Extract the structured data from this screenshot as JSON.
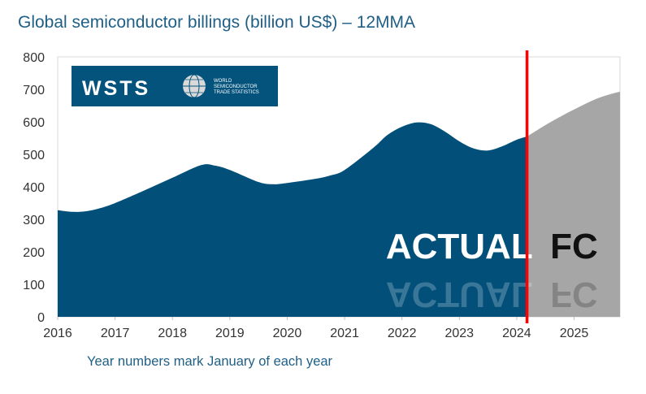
{
  "chart_data": {
    "type": "area",
    "title": "Global semiconductor billings (billion US$) – 12MMA",
    "xlabel": "Year numbers mark January of each year",
    "ylabel": "",
    "xlim": [
      2016.0,
      2025.8
    ],
    "ylim": [
      0,
      800
    ],
    "y_ticks": [
      0,
      100,
      200,
      300,
      400,
      500,
      600,
      700,
      800
    ],
    "x_ticks": [
      2016,
      2017,
      2018,
      2019,
      2020,
      2021,
      2022,
      2023,
      2024,
      2025
    ],
    "grid": false,
    "forecast_start": 2024.18,
    "colors": {
      "actual": "#02507a",
      "forecast": "#a6a6a6",
      "divider": "#ff0000",
      "title": "#1f5f86"
    },
    "series": [
      {
        "segment": "actual",
        "x": [
          2016.0,
          2016.25,
          2016.5,
          2016.75,
          2017.0,
          2017.5,
          2018.0,
          2018.5,
          2018.75,
          2019.0,
          2019.5,
          2019.75,
          2020.0,
          2020.5,
          2020.75,
          2021.0,
          2021.5,
          2021.75,
          2022.0,
          2022.25,
          2022.5,
          2022.75,
          2023.0,
          2023.25,
          2023.5,
          2023.75,
          2024.0,
          2024.18
        ],
        "y": [
          328,
          323,
          325,
          335,
          350,
          388,
          428,
          467,
          465,
          452,
          415,
          408,
          412,
          425,
          435,
          452,
          520,
          560,
          585,
          598,
          593,
          570,
          540,
          518,
          512,
          525,
          545,
          555
        ]
      },
      {
        "segment": "forecast",
        "x": [
          2024.18,
          2024.5,
          2024.75,
          2025.0,
          2025.25,
          2025.5,
          2025.8
        ],
        "y": [
          555,
          590,
          615,
          638,
          660,
          678,
          693
        ]
      }
    ],
    "annotations": [
      {
        "text": "ACTUAL",
        "x": 2023.0,
        "y": 180
      },
      {
        "text": "FC",
        "x": 2025.0,
        "y": 180
      }
    ],
    "logo": {
      "name": "WSTS",
      "subtitle": [
        "WORLD",
        "SEMICONDUCTOR",
        "TRADE STATISTICS"
      ]
    }
  }
}
